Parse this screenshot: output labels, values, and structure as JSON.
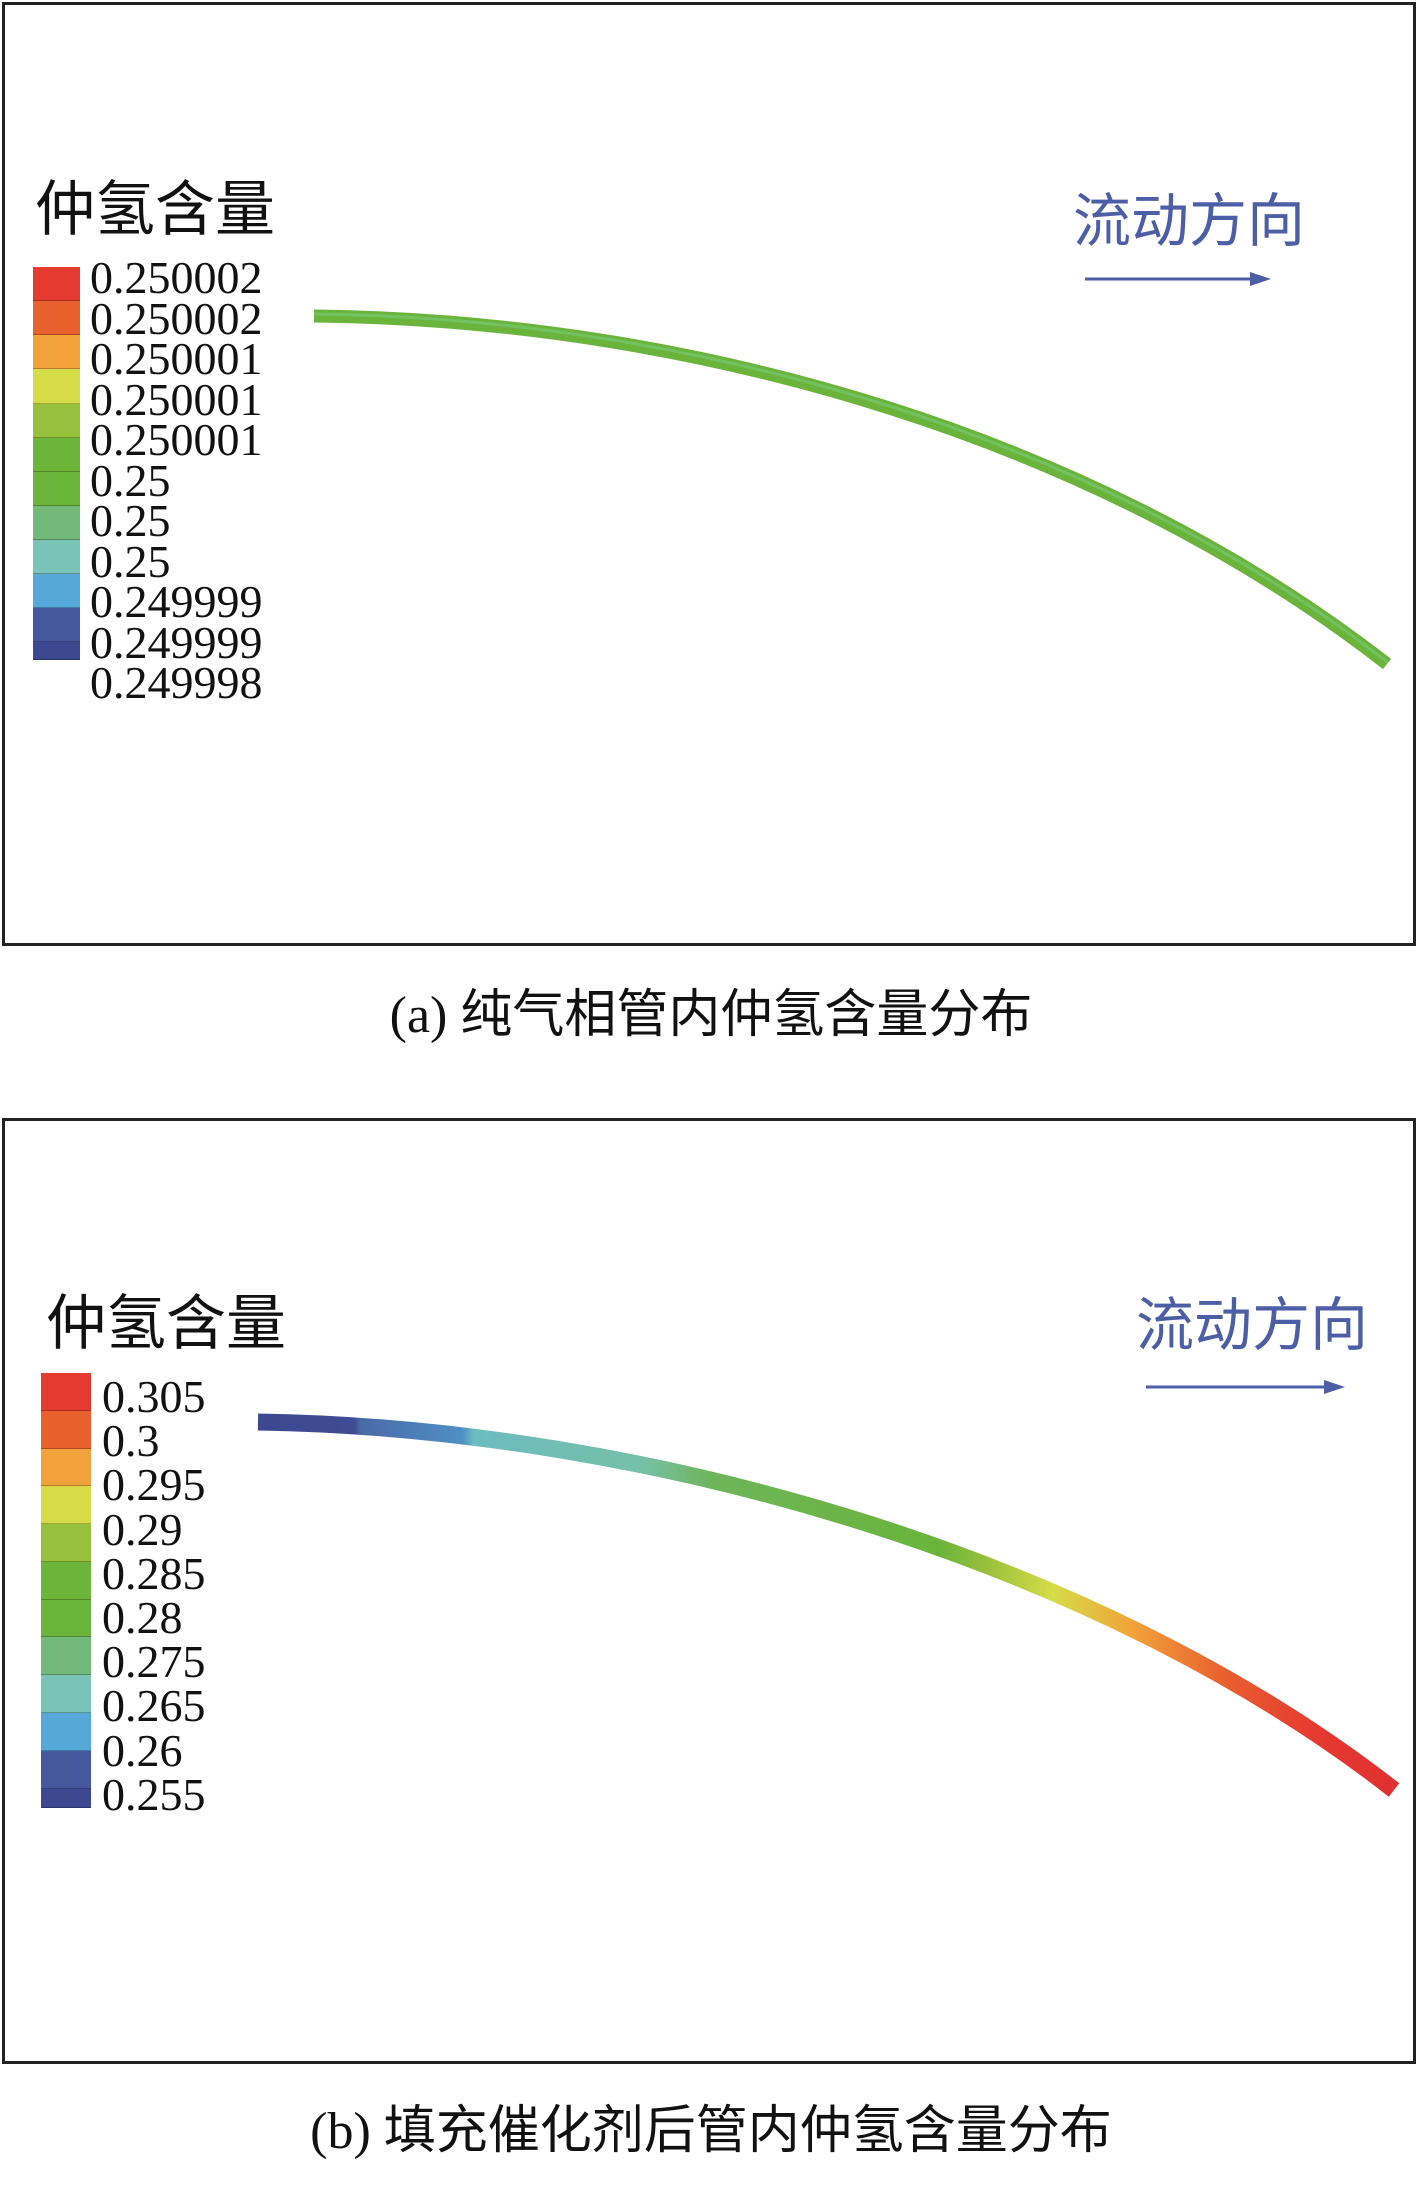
{
  "panel_a": {
    "legend_title": "仲氢含量",
    "legend_labels": [
      "0.250002",
      "0.250002",
      "0.250001",
      "0.250001",
      "0.250001",
      "0.25",
      "0.25",
      "0.25",
      "0.249999",
      "0.249999",
      "0.249998"
    ],
    "legend_colors": [
      "#e53a2f",
      "#e9602f",
      "#f1a23a",
      "#d6dc48",
      "#97c03c",
      "#6db53a",
      "#6bb43b",
      "#72b97a",
      "#79c4b6",
      "#55a8d8",
      "#46589d",
      "#3c4890"
    ],
    "arrow_label": "流动方向",
    "caption": "(a) 纯气相管内仲氢含量分布",
    "tube_color": "#6bb43b"
  },
  "panel_b": {
    "legend_title": "仲氢含量",
    "legend_labels": [
      "0.305",
      "0.3",
      "0.295",
      "0.29",
      "0.285",
      "0.28",
      "0.275",
      "0.265",
      "0.26",
      "0.255"
    ],
    "legend_colors": [
      "#e53a2f",
      "#e9602f",
      "#f1a23a",
      "#d6dc48",
      "#97c03c",
      "#6db53a",
      "#6bb43b",
      "#72b97a",
      "#79c4b6",
      "#55a8d8",
      "#46589d",
      "#3c4890"
    ],
    "arrow_label": "流动方向",
    "caption": "(b) 填充催化剂后管内仲氢含量分布"
  },
  "arrow_color": "#4b5ea6"
}
